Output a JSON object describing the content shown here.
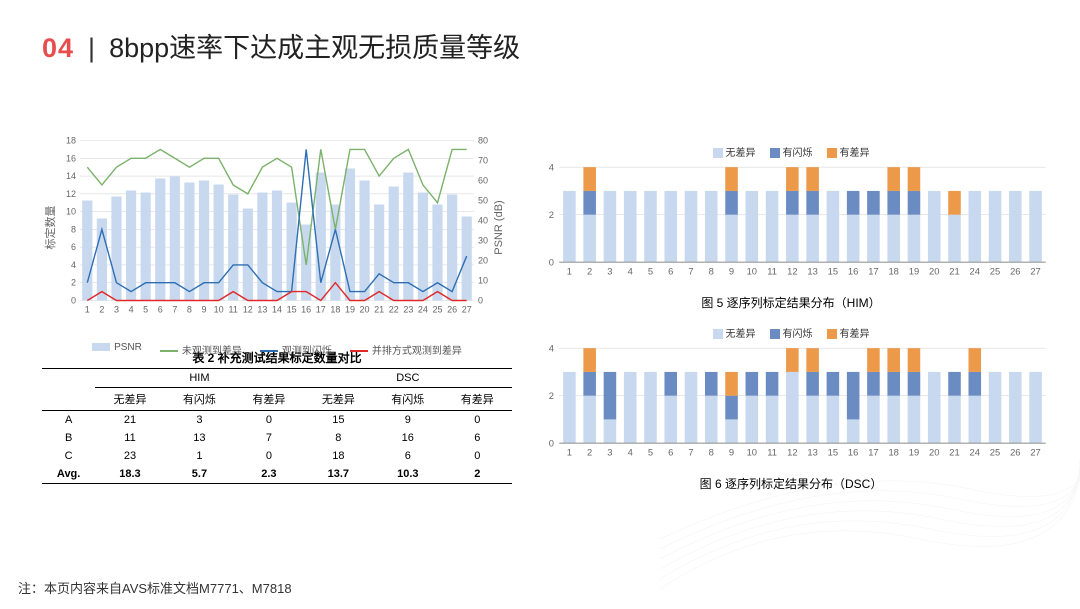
{
  "header": {
    "num": "04",
    "sep": "|",
    "title": "8bpp速率下达成主观无损质量等级"
  },
  "colors": {
    "psnr_bar": "#c8d9ef",
    "green": "#7ab26a",
    "blue": "#2e6fb4",
    "red": "#e02928",
    "stack_a": "#c8d9ef",
    "stack_b": "#6b8cc2",
    "stack_c": "#ec9a4a",
    "grid": "#d9d9d9",
    "axis": "#999999"
  },
  "chart1": {
    "x": [
      1,
      2,
      3,
      4,
      5,
      6,
      7,
      8,
      9,
      10,
      11,
      12,
      13,
      14,
      15,
      16,
      17,
      18,
      19,
      20,
      21,
      22,
      23,
      24,
      25,
      26,
      27
    ],
    "y1_label": "标定数量",
    "y2_label": "PSNR (dB)",
    "y1_lim": [
      0,
      18
    ],
    "y1_ticks": [
      0,
      2,
      4,
      6,
      8,
      10,
      12,
      14,
      16,
      18
    ],
    "y2_lim": [
      0,
      80
    ],
    "y2_ticks": [
      0,
      10,
      20,
      30,
      40,
      50,
      60,
      70,
      80
    ],
    "psnr_bars": [
      50,
      41,
      52,
      55,
      54,
      61,
      62,
      59,
      60,
      58,
      53,
      46,
      54,
      55,
      49,
      38,
      64,
      48,
      66,
      60,
      48,
      57,
      64,
      54,
      48,
      53,
      42
    ],
    "green_line": [
      15,
      13,
      15,
      16,
      16,
      17,
      16,
      15,
      16,
      16,
      13,
      12,
      15,
      16,
      15,
      4,
      17,
      8,
      17,
      17,
      14,
      16,
      17,
      13,
      11,
      17,
      17
    ],
    "blue_line": [
      2,
      8,
      2,
      1,
      2,
      2,
      2,
      1,
      2,
      2,
      4,
      4,
      2,
      1,
      1,
      17,
      2,
      8,
      1,
      1,
      3,
      2,
      2,
      1,
      2,
      1,
      5
    ],
    "red_line": [
      0,
      1,
      0,
      0,
      0,
      0,
      0,
      0,
      0,
      0,
      1,
      0,
      0,
      0,
      1,
      1,
      0,
      2,
      0,
      0,
      1,
      0,
      0,
      0,
      1,
      0,
      0
    ],
    "legend": [
      "PSNR",
      "未观测到差异",
      "观测到闪烁",
      "并排方式观测到差异"
    ]
  },
  "table2": {
    "title": "表 2  补充测试结果标定数量对比",
    "groups": [
      "HIM",
      "DSC"
    ],
    "cols": [
      "无差异",
      "有闪烁",
      "有差异"
    ],
    "rows": [
      {
        "n": "A",
        "v": [
          21,
          3,
          0,
          15,
          9,
          0
        ]
      },
      {
        "n": "B",
        "v": [
          11,
          13,
          7,
          8,
          16,
          6
        ]
      },
      {
        "n": "C",
        "v": [
          23,
          1,
          0,
          18,
          6,
          0
        ]
      }
    ],
    "avg": {
      "n": "Avg.",
      "v": [
        18.3,
        5.7,
        2.3,
        13.7,
        10.3,
        2.0
      ]
    }
  },
  "stacked": {
    "legend": [
      "无差异",
      "有闪烁",
      "有差异"
    ],
    "x": [
      1,
      2,
      3,
      4,
      5,
      6,
      7,
      8,
      9,
      10,
      11,
      12,
      13,
      15,
      16,
      17,
      18,
      19,
      20,
      21,
      24,
      25,
      26,
      27
    ],
    "y_lim": [
      0,
      4
    ],
    "y_ticks": [
      0,
      2,
      4
    ],
    "him": {
      "caption": "图 5  逐序列标定结果分布（HIM）",
      "a": [
        3,
        2,
        3,
        3,
        3,
        3,
        3,
        3,
        2,
        3,
        3,
        2,
        2,
        3,
        2,
        2,
        2,
        2,
        3,
        2,
        3,
        3,
        3,
        3
      ],
      "b": [
        0,
        1,
        0,
        0,
        0,
        0,
        0,
        0,
        1,
        0,
        0,
        1,
        1,
        0,
        1,
        1,
        1,
        1,
        0,
        0,
        0,
        0,
        0,
        0
      ],
      "c": [
        0,
        1,
        0,
        0,
        0,
        0,
        0,
        0,
        1,
        0,
        0,
        1,
        1,
        0,
        0,
        0,
        1,
        1,
        0,
        1,
        0,
        0,
        0,
        0
      ]
    },
    "dsc": {
      "caption": "图 6  逐序列标定结果分布（DSC）",
      "a": [
        3,
        2,
        1,
        3,
        3,
        2,
        3,
        2,
        1,
        2,
        2,
        3,
        2,
        2,
        1,
        2,
        2,
        2,
        3,
        2,
        2,
        3,
        3,
        3
      ],
      "b": [
        0,
        1,
        2,
        0,
        0,
        1,
        0,
        1,
        1,
        1,
        1,
        0,
        1,
        1,
        2,
        1,
        1,
        1,
        0,
        1,
        1,
        0,
        0,
        0
      ],
      "c": [
        0,
        1,
        0,
        0,
        0,
        0,
        0,
        0,
        1,
        0,
        0,
        1,
        1,
        0,
        0,
        1,
        1,
        1,
        0,
        0,
        1,
        0,
        0,
        0
      ]
    }
  },
  "footer": "注：本页内容来自AVS标准文档M7771、M7818"
}
